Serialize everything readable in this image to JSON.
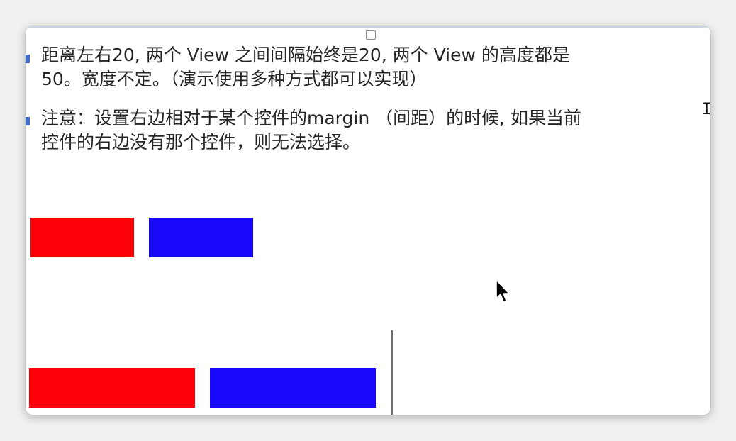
{
  "notes": [
    {
      "line1": "距离左右20, 两个 View 之间间隔始终是20, 两个 View 的高度都是",
      "line2": "50。宽度不定。（演示使用多种方式都可以实现）"
    },
    {
      "line1": "注意：设置右边相对于某个控件的margin （间距）的时候, 如果当前",
      "line2": "控件的右边没有那个控件，则无法选择。"
    }
  ],
  "colors": {
    "red_view": "#fb0006",
    "blue_view": "#1708f9",
    "bullet": "#3e6ec4"
  }
}
